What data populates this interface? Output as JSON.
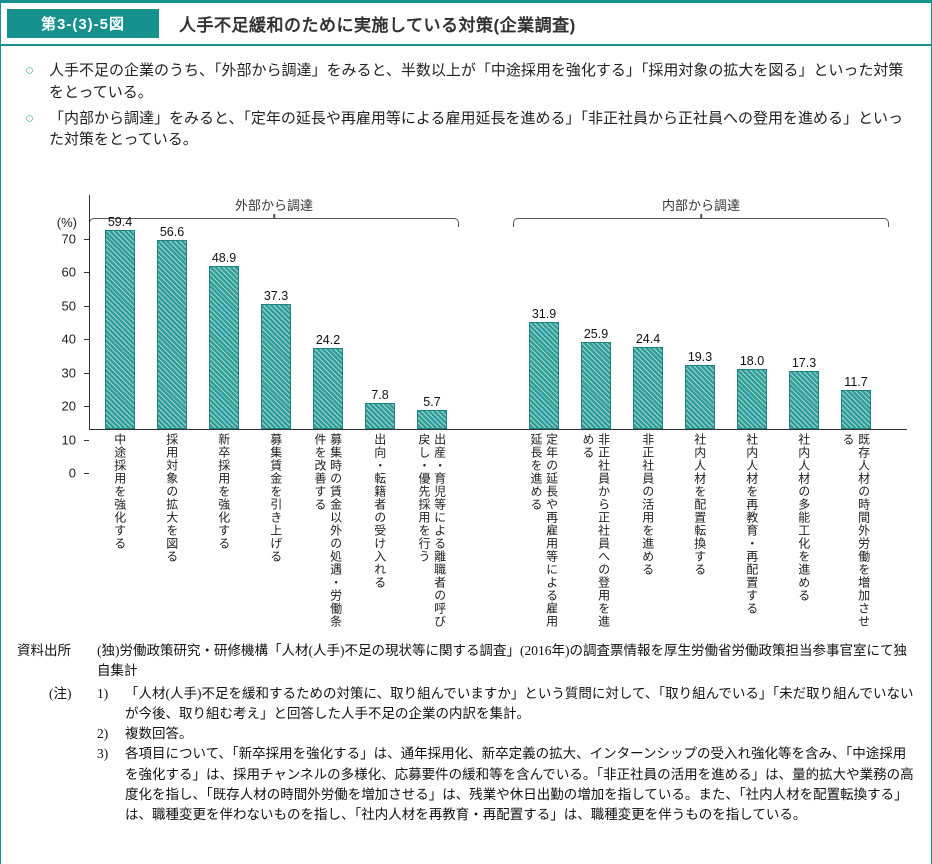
{
  "page": {
    "accent_color": "#17918e"
  },
  "header": {
    "figure_label": "第3-(3)-5図",
    "title": "人手不足緩和のために実施している対策(企業調査)"
  },
  "bullets": [
    {
      "marker": "○",
      "text": "人手不足の企業のうち、「外部から調達」をみると、半数以上が「中途採用を強化する」「採用対象の拡大を図る」といった対策をとっている。"
    },
    {
      "marker": "○",
      "text": "「内部から調達」をみると、「定年の延長や再雇用等による雇用延長を進める」「非正社員から正社員への登用を進める」といった対策をとっている。"
    }
  ],
  "chart_data": {
    "type": "bar",
    "unit_label": "(%)",
    "ylim": [
      0,
      70
    ],
    "yticks": [
      0,
      10,
      20,
      30,
      40,
      50,
      60,
      70
    ],
    "bar_color": "#2f9e99",
    "grid": false,
    "legend": "none",
    "groups": [
      {
        "label": "外部から調達",
        "categories": [
          "中途採用を強化する",
          "採用対象の拡大を図る",
          "新卒採用を強化する",
          "募集賃金を引き上げる",
          "募集時の賃金以外の処遇・労働条件を改善する",
          "出向・転籍者の受け入れる",
          "出産・育児等による離職者の呼び戻し・優先採用を行う"
        ],
        "values": [
          59.4,
          56.6,
          48.9,
          37.3,
          24.2,
          7.8,
          5.7
        ]
      },
      {
        "label": "内部から調達",
        "categories": [
          "定年の延長や再雇用等による雇用延長を進める",
          "非正社員から正社員への登用を進める",
          "非正社員の活用を進める",
          "社内人材を配置転換する",
          "社内人材を再教育・再配置する",
          "社内人材の多能工化を進める",
          "既存人材の時間外労働を増加させる"
        ],
        "values": [
          31.9,
          25.9,
          24.4,
          19.3,
          18.0,
          17.3,
          11.7
        ]
      }
    ]
  },
  "footer": {
    "source_label": "資料出所",
    "source_text": "(独)労働政策研究・研修機構「人材(人手)不足の現状等に関する調査」(2016年)の調査票情報を厚生労働省労働政策担当参事官室にて独自集計",
    "note_label": "(注)",
    "notes": [
      {
        "num": "1)",
        "text": "「人材(人手)不足を緩和するための対策に、取り組んでいますか」という質問に対して、「取り組んでいる」「未だ取り組んでいないが今後、取り組む考え」と回答した人手不足の企業の内訳を集計。"
      },
      {
        "num": "2)",
        "text": "複数回答。"
      },
      {
        "num": "3)",
        "text": "各項目について、「新卒採用を強化する」は、通年採用化、新卒定義の拡大、インターンシップの受入れ強化等を含み、「中途採用を強化する」は、採用チャンネルの多様化、応募要件の緩和等を含んでいる。「非正社員の活用を進める」は、量的拡大や業務の高度化を指し、「既存人材の時間外労働を増加させる」は、残業や休日出勤の増加を指している。また、「社内人材を配置転換する」は、職種変更を伴わないものを指し、「社内人材を再教育・再配置する」は、職種変更を伴うものを指している。"
      }
    ]
  }
}
